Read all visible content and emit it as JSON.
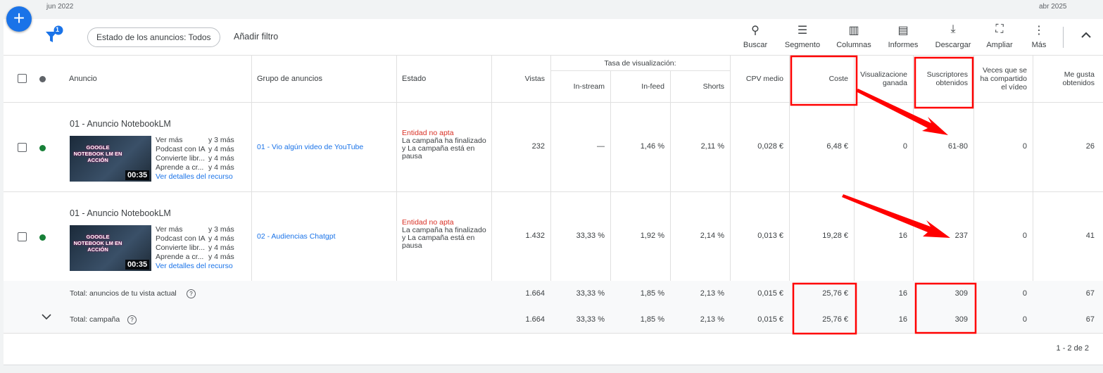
{
  "timeline": {
    "start": "jun 2022",
    "end": "abr 2025"
  },
  "toolbar": {
    "filter_badge": "1",
    "filter_chip": "Estado de los anuncios: Todos",
    "add_filter": "Añadir filtro",
    "tools": [
      "Buscar",
      "Segmento",
      "Columnas",
      "Informes",
      "Descargar",
      "Ampliar",
      "Más"
    ]
  },
  "table": {
    "group_header": "Tasa de visualización:",
    "columns": [
      "Anuncio",
      "Grupo de anuncios",
      "Estado",
      "Vistas",
      "In-stream",
      "In-feed",
      "Shorts",
      "CPV medio",
      "Coste",
      "Visualizacione ganada",
      "Suscriptores obtenidos",
      "Veces que se ha compartido el vídeo",
      "Me gusta obtenidos"
    ],
    "rows": [
      {
        "ad_name": "01 - Anuncio NotebookLM",
        "thumb_text": "GOOGLE NOTEBOOK LM EN ACCIÓN",
        "duration": "00:35",
        "assets": [
          [
            "Ver más",
            "y 3 más"
          ],
          [
            "Podcast con IA",
            "y 4 más"
          ],
          [
            "Convierte libr...",
            "y 4 más"
          ],
          [
            "Aprende a cr...",
            "y 4 más"
          ]
        ],
        "details_link": "Ver detalles del recurso",
        "ad_group": "01 - Vio algún video de YouTube",
        "status_title": "Entidad no apta",
        "status_detail": "La campaña ha finalizado y La campaña está en pausa",
        "cells": [
          "232",
          "—",
          "1,46 %",
          "2,11 %",
          "0,028 €",
          "6,48 €",
          "0",
          "61-80",
          "0",
          "26"
        ]
      },
      {
        "ad_name": "01 - Anuncio NotebookLM",
        "thumb_text": "GOOGLE NOTEBOOK LM EN ACCIÓN",
        "duration": "00:35",
        "assets": [
          [
            "Ver más",
            "y 3 más"
          ],
          [
            "Podcast con IA",
            "y 4 más"
          ],
          [
            "Convierte libr...",
            "y 4 más"
          ],
          [
            "Aprende a cr...",
            "y 4 más"
          ]
        ],
        "details_link": "Ver detalles del recurso",
        "ad_group": "02 - Audiencias Chatgpt",
        "status_title": "Entidad no apta",
        "status_detail": "La campaña ha finalizado y La campaña está en pausa",
        "cells": [
          "1.432",
          "33,33 %",
          "1,92 %",
          "2,14 %",
          "0,013 €",
          "19,28 €",
          "16",
          "237",
          "0",
          "41"
        ]
      }
    ],
    "totals": [
      {
        "label": "Total: anuncios de tu vista actual",
        "cells": [
          "1.664",
          "33,33 %",
          "1,85 %",
          "2,13 %",
          "0,015 €",
          "25,76 €",
          "16",
          "309",
          "0",
          "67"
        ]
      },
      {
        "label": "Total: campaña",
        "cells": [
          "1.664",
          "33,33 %",
          "1,85 %",
          "2,13 %",
          "0,015 €",
          "25,76 €",
          "16",
          "309",
          "0",
          "67"
        ]
      }
    ]
  },
  "pagination": "1 - 2 de 2"
}
